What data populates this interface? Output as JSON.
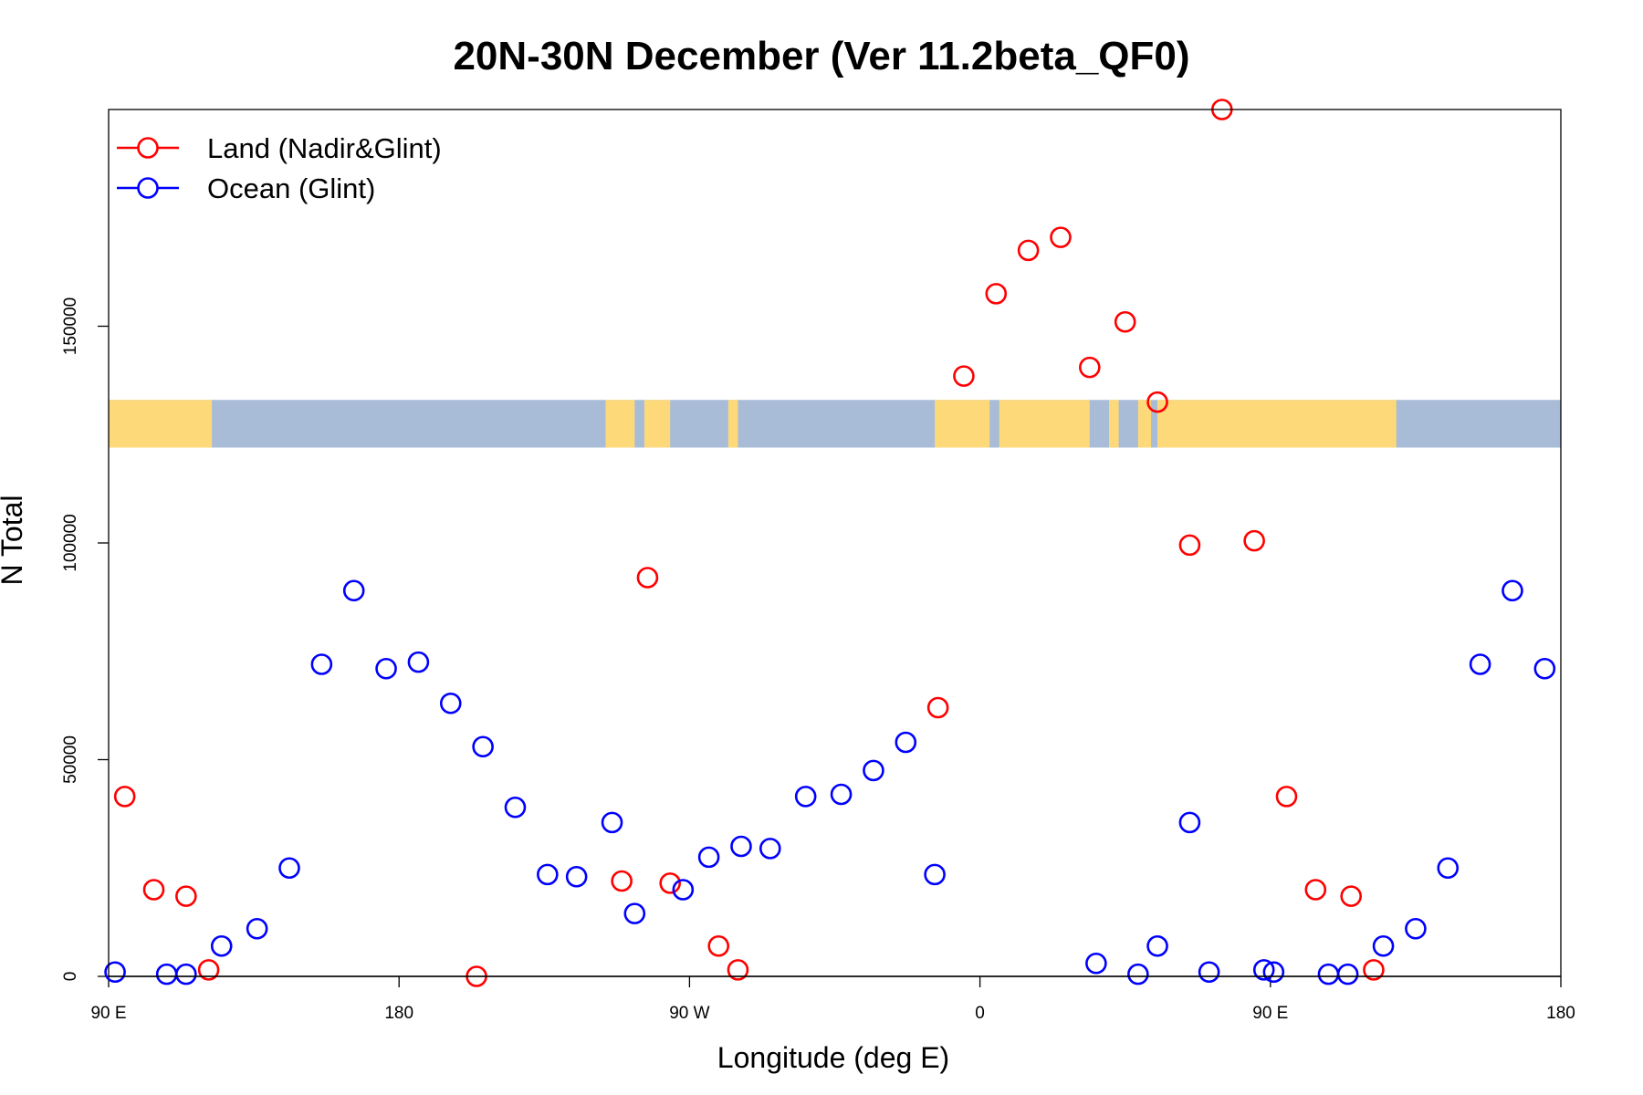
{
  "chart_data": {
    "type": "scatter",
    "title": "20N-30N December (Ver 11.2beta_QF0)",
    "xlabel": "Longitude (deg E)",
    "ylabel": "N Total",
    "xlim": [
      90,
      540
    ],
    "ylim": [
      0,
      200000
    ],
    "x_ticks": [
      {
        "value": 90,
        "label": "90 E"
      },
      {
        "value": 180,
        "label": "180"
      },
      {
        "value": 270,
        "label": "90 W"
      },
      {
        "value": 360,
        "label": "0"
      },
      {
        "value": 450,
        "label": "90 E"
      },
      {
        "value": 540,
        "label": "180"
      }
    ],
    "y_ticks": [
      {
        "value": 0,
        "label": "0"
      },
      {
        "value": 50000,
        "label": "50000"
      },
      {
        "value": 100000,
        "label": "100000"
      },
      {
        "value": 150000,
        "label": "150000"
      }
    ],
    "legend_position": "top-left",
    "series": [
      {
        "name": "Land (Nadir&Glint)",
        "color": "#ff0000",
        "points": [
          {
            "x": 95,
            "y": 41500
          },
          {
            "x": 104,
            "y": 20000
          },
          {
            "x": 114,
            "y": 18500
          },
          {
            "x": 121,
            "y": 1500
          },
          {
            "x": 204,
            "y": 0
          },
          {
            "x": 249,
            "y": 22000
          },
          {
            "x": 257,
            "y": 92000
          },
          {
            "x": 264,
            "y": 21500
          },
          {
            "x": 279,
            "y": 7000
          },
          {
            "x": 285,
            "y": 1500
          },
          {
            "x": 347,
            "y": 62000
          },
          {
            "x": 355,
            "y": 138500
          },
          {
            "x": 365,
            "y": 157500
          },
          {
            "x": 375,
            "y": 167500
          },
          {
            "x": 385,
            "y": 170500
          },
          {
            "x": 394,
            "y": 140500
          },
          {
            "x": 405,
            "y": 151000
          },
          {
            "x": 415,
            "y": 132500
          },
          {
            "x": 425,
            "y": 99500
          },
          {
            "x": 435,
            "y": 200000
          },
          {
            "x": 445,
            "y": 100500
          },
          {
            "x": 455,
            "y": 41500
          },
          {
            "x": 464,
            "y": 20000
          },
          {
            "x": 475,
            "y": 18500
          },
          {
            "x": 482,
            "y": 1500
          }
        ]
      },
      {
        "name": "Ocean (Glint)",
        "color": "#0000ff",
        "points": [
          {
            "x": 92,
            "y": 1000
          },
          {
            "x": 108,
            "y": 500
          },
          {
            "x": 114,
            "y": 500
          },
          {
            "x": 125,
            "y": 7000
          },
          {
            "x": 136,
            "y": 11000
          },
          {
            "x": 146,
            "y": 25000
          },
          {
            "x": 156,
            "y": 72000
          },
          {
            "x": 166,
            "y": 89000
          },
          {
            "x": 176,
            "y": 71000
          },
          {
            "x": 186,
            "y": 72500
          },
          {
            "x": 196,
            "y": 63000
          },
          {
            "x": 206,
            "y": 53000
          },
          {
            "x": 216,
            "y": 39000
          },
          {
            "x": 226,
            "y": 23500
          },
          {
            "x": 235,
            "y": 23000
          },
          {
            "x": 246,
            "y": 35500
          },
          {
            "x": 253,
            "y": 14500
          },
          {
            "x": 268,
            "y": 20000
          },
          {
            "x": 276,
            "y": 27500
          },
          {
            "x": 286,
            "y": 30000
          },
          {
            "x": 295,
            "y": 29500
          },
          {
            "x": 306,
            "y": 41500
          },
          {
            "x": 317,
            "y": 42000
          },
          {
            "x": 327,
            "y": 47500
          },
          {
            "x": 337,
            "y": 54000
          },
          {
            "x": 346,
            "y": 23500
          },
          {
            "x": 396,
            "y": 3000
          },
          {
            "x": 409,
            "y": 500
          },
          {
            "x": 415,
            "y": 7000
          },
          {
            "x": 425,
            "y": 35500
          },
          {
            "x": 431,
            "y": 1000
          },
          {
            "x": 448,
            "y": 1500
          },
          {
            "x": 451,
            "y": 1000
          },
          {
            "x": 468,
            "y": 500
          },
          {
            "x": 474,
            "y": 500
          },
          {
            "x": 485,
            "y": 7000
          },
          {
            "x": 495,
            "y": 11000
          },
          {
            "x": 505,
            "y": 25000
          },
          {
            "x": 515,
            "y": 72000
          },
          {
            "x": 525,
            "y": 89000
          },
          {
            "x": 535,
            "y": 71000
          }
        ]
      }
    ],
    "map_strip": {
      "y_range": [
        122000,
        133000
      ],
      "ocean_color": "#a8bcd8",
      "land_color": "#fed97a",
      "land_lon_ranges": [
        [
          90,
          122
        ],
        [
          244,
          253
        ],
        [
          256,
          264
        ],
        [
          282,
          285
        ],
        [
          346,
          363
        ],
        [
          366,
          394
        ],
        [
          400,
          403
        ],
        [
          409,
          413
        ],
        [
          415,
          489
        ]
      ]
    }
  }
}
